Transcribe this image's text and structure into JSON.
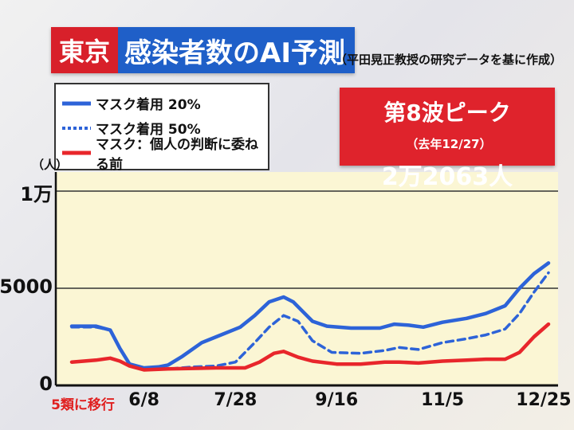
{
  "header": {
    "region": "東京",
    "title": "感染者数のAI予測",
    "source": "（平田晃正教授の研究データを基に作成）"
  },
  "peak_box": {
    "label": "第8波ピーク",
    "date_note": "（去年12/27）",
    "value": "2万2063人"
  },
  "colors": {
    "solid_blue": "#2d63d8",
    "dashed_blue": "#2d63d8",
    "red": "#e8262b"
  },
  "chart_data": {
    "type": "line",
    "unit_label": "（人）",
    "ylim": [
      0,
      10000
    ],
    "y_ticks": [
      {
        "value": 0,
        "label": "0"
      },
      {
        "value": 5000,
        "label": "5000"
      },
      {
        "value": 10000,
        "label": "1万"
      }
    ],
    "x_ticks": [
      {
        "x": 0.0,
        "label": "5類に移行",
        "highlight": true
      },
      {
        "x": 0.15,
        "label": "6/8"
      },
      {
        "x": 0.34,
        "label": "7/28"
      },
      {
        "x": 0.55,
        "label": "9/16"
      },
      {
        "x": 0.77,
        "label": "11/5"
      },
      {
        "x": 0.98,
        "label": "12/25"
      }
    ],
    "grid": true,
    "legend_position": "top-left",
    "series": [
      {
        "name": "マスク着用 20%",
        "style": "solid",
        "color": "#2d63d8",
        "points": [
          [
            0.0,
            3050
          ],
          [
            0.05,
            3050
          ],
          [
            0.08,
            2850
          ],
          [
            0.1,
            1900
          ],
          [
            0.12,
            1100
          ],
          [
            0.15,
            900
          ],
          [
            0.18,
            950
          ],
          [
            0.2,
            1050
          ],
          [
            0.23,
            1500
          ],
          [
            0.27,
            2200
          ],
          [
            0.3,
            2500
          ],
          [
            0.35,
            3000
          ],
          [
            0.38,
            3600
          ],
          [
            0.41,
            4300
          ],
          [
            0.44,
            4550
          ],
          [
            0.46,
            4300
          ],
          [
            0.5,
            3300
          ],
          [
            0.53,
            3050
          ],
          [
            0.58,
            2950
          ],
          [
            0.64,
            2950
          ],
          [
            0.67,
            3150
          ],
          [
            0.7,
            3100
          ],
          [
            0.73,
            3000
          ],
          [
            0.77,
            3250
          ],
          [
            0.82,
            3450
          ],
          [
            0.86,
            3700
          ],
          [
            0.9,
            4100
          ],
          [
            0.93,
            5000
          ],
          [
            0.96,
            5750
          ],
          [
            0.99,
            6300
          ]
        ]
      },
      {
        "name": "マスク着用 50%",
        "style": "dashed",
        "color": "#2d63d8",
        "points": [
          [
            0.0,
            3000
          ],
          [
            0.05,
            3000
          ],
          [
            0.08,
            2850
          ],
          [
            0.1,
            1900
          ],
          [
            0.12,
            1100
          ],
          [
            0.15,
            850
          ],
          [
            0.2,
            850
          ],
          [
            0.25,
            950
          ],
          [
            0.3,
            1000
          ],
          [
            0.34,
            1200
          ],
          [
            0.38,
            2200
          ],
          [
            0.41,
            3000
          ],
          [
            0.44,
            3600
          ],
          [
            0.47,
            3300
          ],
          [
            0.5,
            2300
          ],
          [
            0.54,
            1700
          ],
          [
            0.6,
            1650
          ],
          [
            0.65,
            1800
          ],
          [
            0.68,
            1950
          ],
          [
            0.72,
            1850
          ],
          [
            0.77,
            2200
          ],
          [
            0.82,
            2400
          ],
          [
            0.86,
            2600
          ],
          [
            0.9,
            2900
          ],
          [
            0.93,
            3700
          ],
          [
            0.96,
            4800
          ],
          [
            0.99,
            5800
          ]
        ]
      },
      {
        "name": "マスク：個人の判断に委ねる前",
        "style": "solid",
        "color": "#e8262b",
        "points": [
          [
            0.0,
            1200
          ],
          [
            0.05,
            1300
          ],
          [
            0.08,
            1400
          ],
          [
            0.1,
            1250
          ],
          [
            0.12,
            1000
          ],
          [
            0.15,
            800
          ],
          [
            0.2,
            850
          ],
          [
            0.3,
            900
          ],
          [
            0.36,
            900
          ],
          [
            0.39,
            1200
          ],
          [
            0.42,
            1650
          ],
          [
            0.44,
            1750
          ],
          [
            0.47,
            1450
          ],
          [
            0.5,
            1250
          ],
          [
            0.55,
            1100
          ],
          [
            0.6,
            1100
          ],
          [
            0.65,
            1200
          ],
          [
            0.68,
            1200
          ],
          [
            0.72,
            1150
          ],
          [
            0.77,
            1250
          ],
          [
            0.82,
            1300
          ],
          [
            0.86,
            1350
          ],
          [
            0.9,
            1350
          ],
          [
            0.93,
            1700
          ],
          [
            0.96,
            2500
          ],
          [
            0.99,
            3150
          ]
        ]
      }
    ]
  }
}
